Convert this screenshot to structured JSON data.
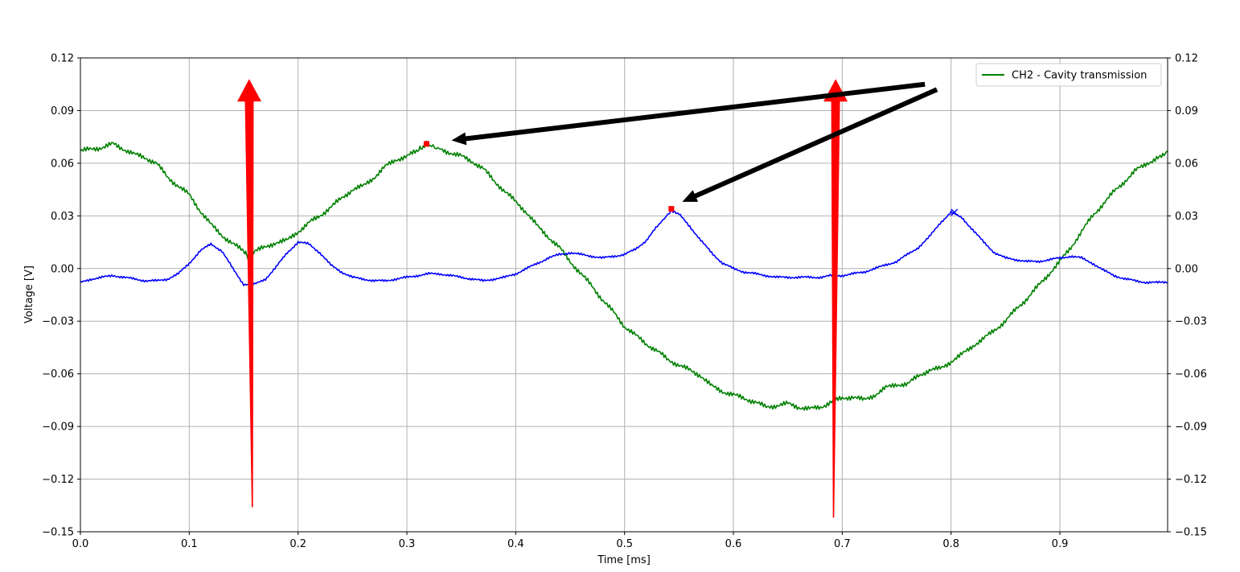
{
  "chart_data": {
    "type": "line",
    "title": "",
    "xlabel": "Time [ms]",
    "ylabel": "Voltage [V]",
    "xlim": [
      0.0,
      0.999
    ],
    "ylim": [
      -0.15,
      0.12
    ],
    "x_ticks": [
      0.0,
      0.1,
      0.2,
      0.3,
      0.4,
      0.5,
      0.6,
      0.7,
      0.8,
      0.9
    ],
    "x_tick_labels": [
      "0.0",
      "0.1",
      "0.2",
      "0.3",
      "0.4",
      "0.5",
      "0.6",
      "0.7",
      "0.8",
      "0.9"
    ],
    "y_ticks": [
      -0.15,
      -0.12,
      -0.09,
      -0.06,
      -0.03,
      0.0,
      0.03,
      0.06,
      0.09,
      0.12
    ],
    "y_tick_labels": [
      "−0.15",
      "−0.12",
      "−0.09",
      "−0.06",
      "−0.03",
      "0.00",
      "0.03",
      "0.06",
      "0.09",
      "0.12"
    ],
    "secondary_y_axis": true,
    "grid": true,
    "legend_position": "top-right",
    "series": [
      {
        "name": "CH2 - Cavity transmission",
        "color": "#008000",
        "x": [
          0.0,
          0.01,
          0.02,
          0.03,
          0.04,
          0.05,
          0.06,
          0.07,
          0.08,
          0.09,
          0.1,
          0.11,
          0.12,
          0.13,
          0.14,
          0.15,
          0.155,
          0.16,
          0.17,
          0.18,
          0.19,
          0.2,
          0.21,
          0.22,
          0.23,
          0.24,
          0.25,
          0.26,
          0.27,
          0.28,
          0.29,
          0.3,
          0.31,
          0.318,
          0.33,
          0.34,
          0.35,
          0.36,
          0.37,
          0.38,
          0.39,
          0.4,
          0.41,
          0.42,
          0.43,
          0.44,
          0.45,
          0.46,
          0.47,
          0.48,
          0.49,
          0.5,
          0.51,
          0.52,
          0.53,
          0.54,
          0.55,
          0.56,
          0.57,
          0.58,
          0.59,
          0.6,
          0.61,
          0.62,
          0.63,
          0.64,
          0.65,
          0.66,
          0.67,
          0.68,
          0.69,
          0.7,
          0.71,
          0.72,
          0.73,
          0.74,
          0.75,
          0.76,
          0.77,
          0.78,
          0.79,
          0.8,
          0.81,
          0.82,
          0.83,
          0.84,
          0.85,
          0.86,
          0.87,
          0.88,
          0.89,
          0.9,
          0.91,
          0.92,
          0.93,
          0.94,
          0.95,
          0.96,
          0.97,
          0.98,
          0.99,
          0.999
        ],
        "y": [
          0.067,
          0.068,
          0.069,
          0.071,
          0.068,
          0.065,
          0.063,
          0.06,
          0.052,
          0.047,
          0.042,
          0.033,
          0.025,
          0.019,
          0.014,
          0.01,
          0.006,
          0.01,
          0.012,
          0.015,
          0.016,
          0.021,
          0.026,
          0.03,
          0.035,
          0.04,
          0.045,
          0.047,
          0.052,
          0.058,
          0.062,
          0.064,
          0.067,
          0.071,
          0.068,
          0.066,
          0.064,
          0.061,
          0.057,
          0.05,
          0.044,
          0.038,
          0.032,
          0.024,
          0.018,
          0.012,
          0.004,
          -0.003,
          -0.01,
          -0.018,
          -0.025,
          -0.033,
          -0.038,
          -0.043,
          -0.047,
          -0.052,
          -0.055,
          -0.058,
          -0.061,
          -0.067,
          -0.07,
          -0.072,
          -0.074,
          -0.076,
          -0.079,
          -0.078,
          -0.077,
          -0.079,
          -0.08,
          -0.079,
          -0.076,
          -0.074,
          -0.073,
          -0.075,
          -0.072,
          -0.068,
          -0.066,
          -0.066,
          -0.061,
          -0.058,
          -0.057,
          -0.053,
          -0.049,
          -0.044,
          -0.04,
          -0.035,
          -0.03,
          -0.023,
          -0.017,
          -0.01,
          -0.003,
          0.004,
          0.012,
          0.021,
          0.03,
          0.037,
          0.044,
          0.05,
          0.056,
          0.06,
          0.063,
          0.067
        ]
      },
      {
        "name": "",
        "color": "#0000ff",
        "x": [
          0.0,
          0.01,
          0.02,
          0.03,
          0.04,
          0.05,
          0.06,
          0.07,
          0.08,
          0.09,
          0.1,
          0.11,
          0.12,
          0.13,
          0.14,
          0.15,
          0.16,
          0.17,
          0.18,
          0.19,
          0.2,
          0.21,
          0.22,
          0.23,
          0.24,
          0.25,
          0.26,
          0.27,
          0.28,
          0.29,
          0.3,
          0.31,
          0.32,
          0.33,
          0.34,
          0.35,
          0.36,
          0.37,
          0.38,
          0.39,
          0.4,
          0.41,
          0.42,
          0.43,
          0.44,
          0.45,
          0.46,
          0.47,
          0.48,
          0.49,
          0.5,
          0.51,
          0.52,
          0.53,
          0.543,
          0.55,
          0.56,
          0.57,
          0.58,
          0.59,
          0.6,
          0.61,
          0.62,
          0.63,
          0.64,
          0.65,
          0.66,
          0.67,
          0.68,
          0.69,
          0.7,
          0.71,
          0.72,
          0.73,
          0.74,
          0.75,
          0.76,
          0.77,
          0.78,
          0.79,
          0.8,
          0.81,
          0.82,
          0.83,
          0.84,
          0.85,
          0.86,
          0.87,
          0.88,
          0.89,
          0.9,
          0.91,
          0.92,
          0.93,
          0.94,
          0.95,
          0.96,
          0.97,
          0.98,
          0.99,
          0.999
        ],
        "y": [
          -0.008,
          -0.006,
          -0.005,
          -0.004,
          -0.005,
          -0.006,
          -0.007,
          -0.007,
          -0.006,
          -0.003,
          0.003,
          0.01,
          0.014,
          0.01,
          0.0,
          -0.009,
          -0.009,
          -0.006,
          0.001,
          0.009,
          0.015,
          0.014,
          0.009,
          0.002,
          -0.002,
          -0.005,
          -0.006,
          -0.007,
          -0.007,
          -0.006,
          -0.005,
          -0.004,
          -0.003,
          -0.003,
          -0.004,
          -0.005,
          -0.006,
          -0.007,
          -0.006,
          -0.005,
          -0.003,
          0.0,
          0.003,
          0.006,
          0.008,
          0.009,
          0.008,
          0.007,
          0.006,
          0.007,
          0.008,
          0.011,
          0.016,
          0.024,
          0.033,
          0.031,
          0.024,
          0.016,
          0.009,
          0.003,
          0.0,
          -0.002,
          -0.003,
          -0.004,
          -0.005,
          -0.005,
          -0.005,
          -0.005,
          -0.005,
          -0.004,
          -0.004,
          -0.003,
          -0.002,
          0.0,
          0.002,
          0.004,
          0.008,
          0.012,
          0.018,
          0.026,
          0.032,
          0.029,
          0.022,
          0.015,
          0.009,
          0.006,
          0.005,
          0.004,
          0.004,
          0.005,
          0.006,
          0.007,
          0.006,
          0.003,
          -0.001,
          -0.004,
          -0.006,
          -0.007,
          -0.008,
          -0.008,
          -0.008
        ]
      }
    ],
    "peak_markers": [
      {
        "x": 0.318,
        "y": 0.071,
        "color": "#ff0000",
        "marker": "square"
      },
      {
        "x": 0.543,
        "y": 0.034,
        "color": "#ff0000",
        "marker": "square"
      },
      {
        "x": 0.803,
        "y": 0.032,
        "color": "#0000ff",
        "marker": "x"
      }
    ],
    "annotations": [
      {
        "type": "arrow",
        "color": "#ff0000",
        "from": {
          "x": 0.158,
          "y": -0.136
        },
        "to": {
          "x": 0.155,
          "y": 0.108
        }
      },
      {
        "type": "arrow",
        "color": "#ff0000",
        "from": {
          "x": 0.692,
          "y": -0.142
        },
        "to": {
          "x": 0.694,
          "y": 0.108
        }
      },
      {
        "type": "arrow",
        "color": "#000000",
        "from": {
          "x": 0.776,
          "y": 0.105
        },
        "to": {
          "x": 0.341,
          "y": 0.073
        }
      },
      {
        "type": "arrow",
        "color": "#000000",
        "from": {
          "x": 0.787,
          "y": 0.102
        },
        "to": {
          "x": 0.553,
          "y": 0.038
        }
      }
    ]
  }
}
